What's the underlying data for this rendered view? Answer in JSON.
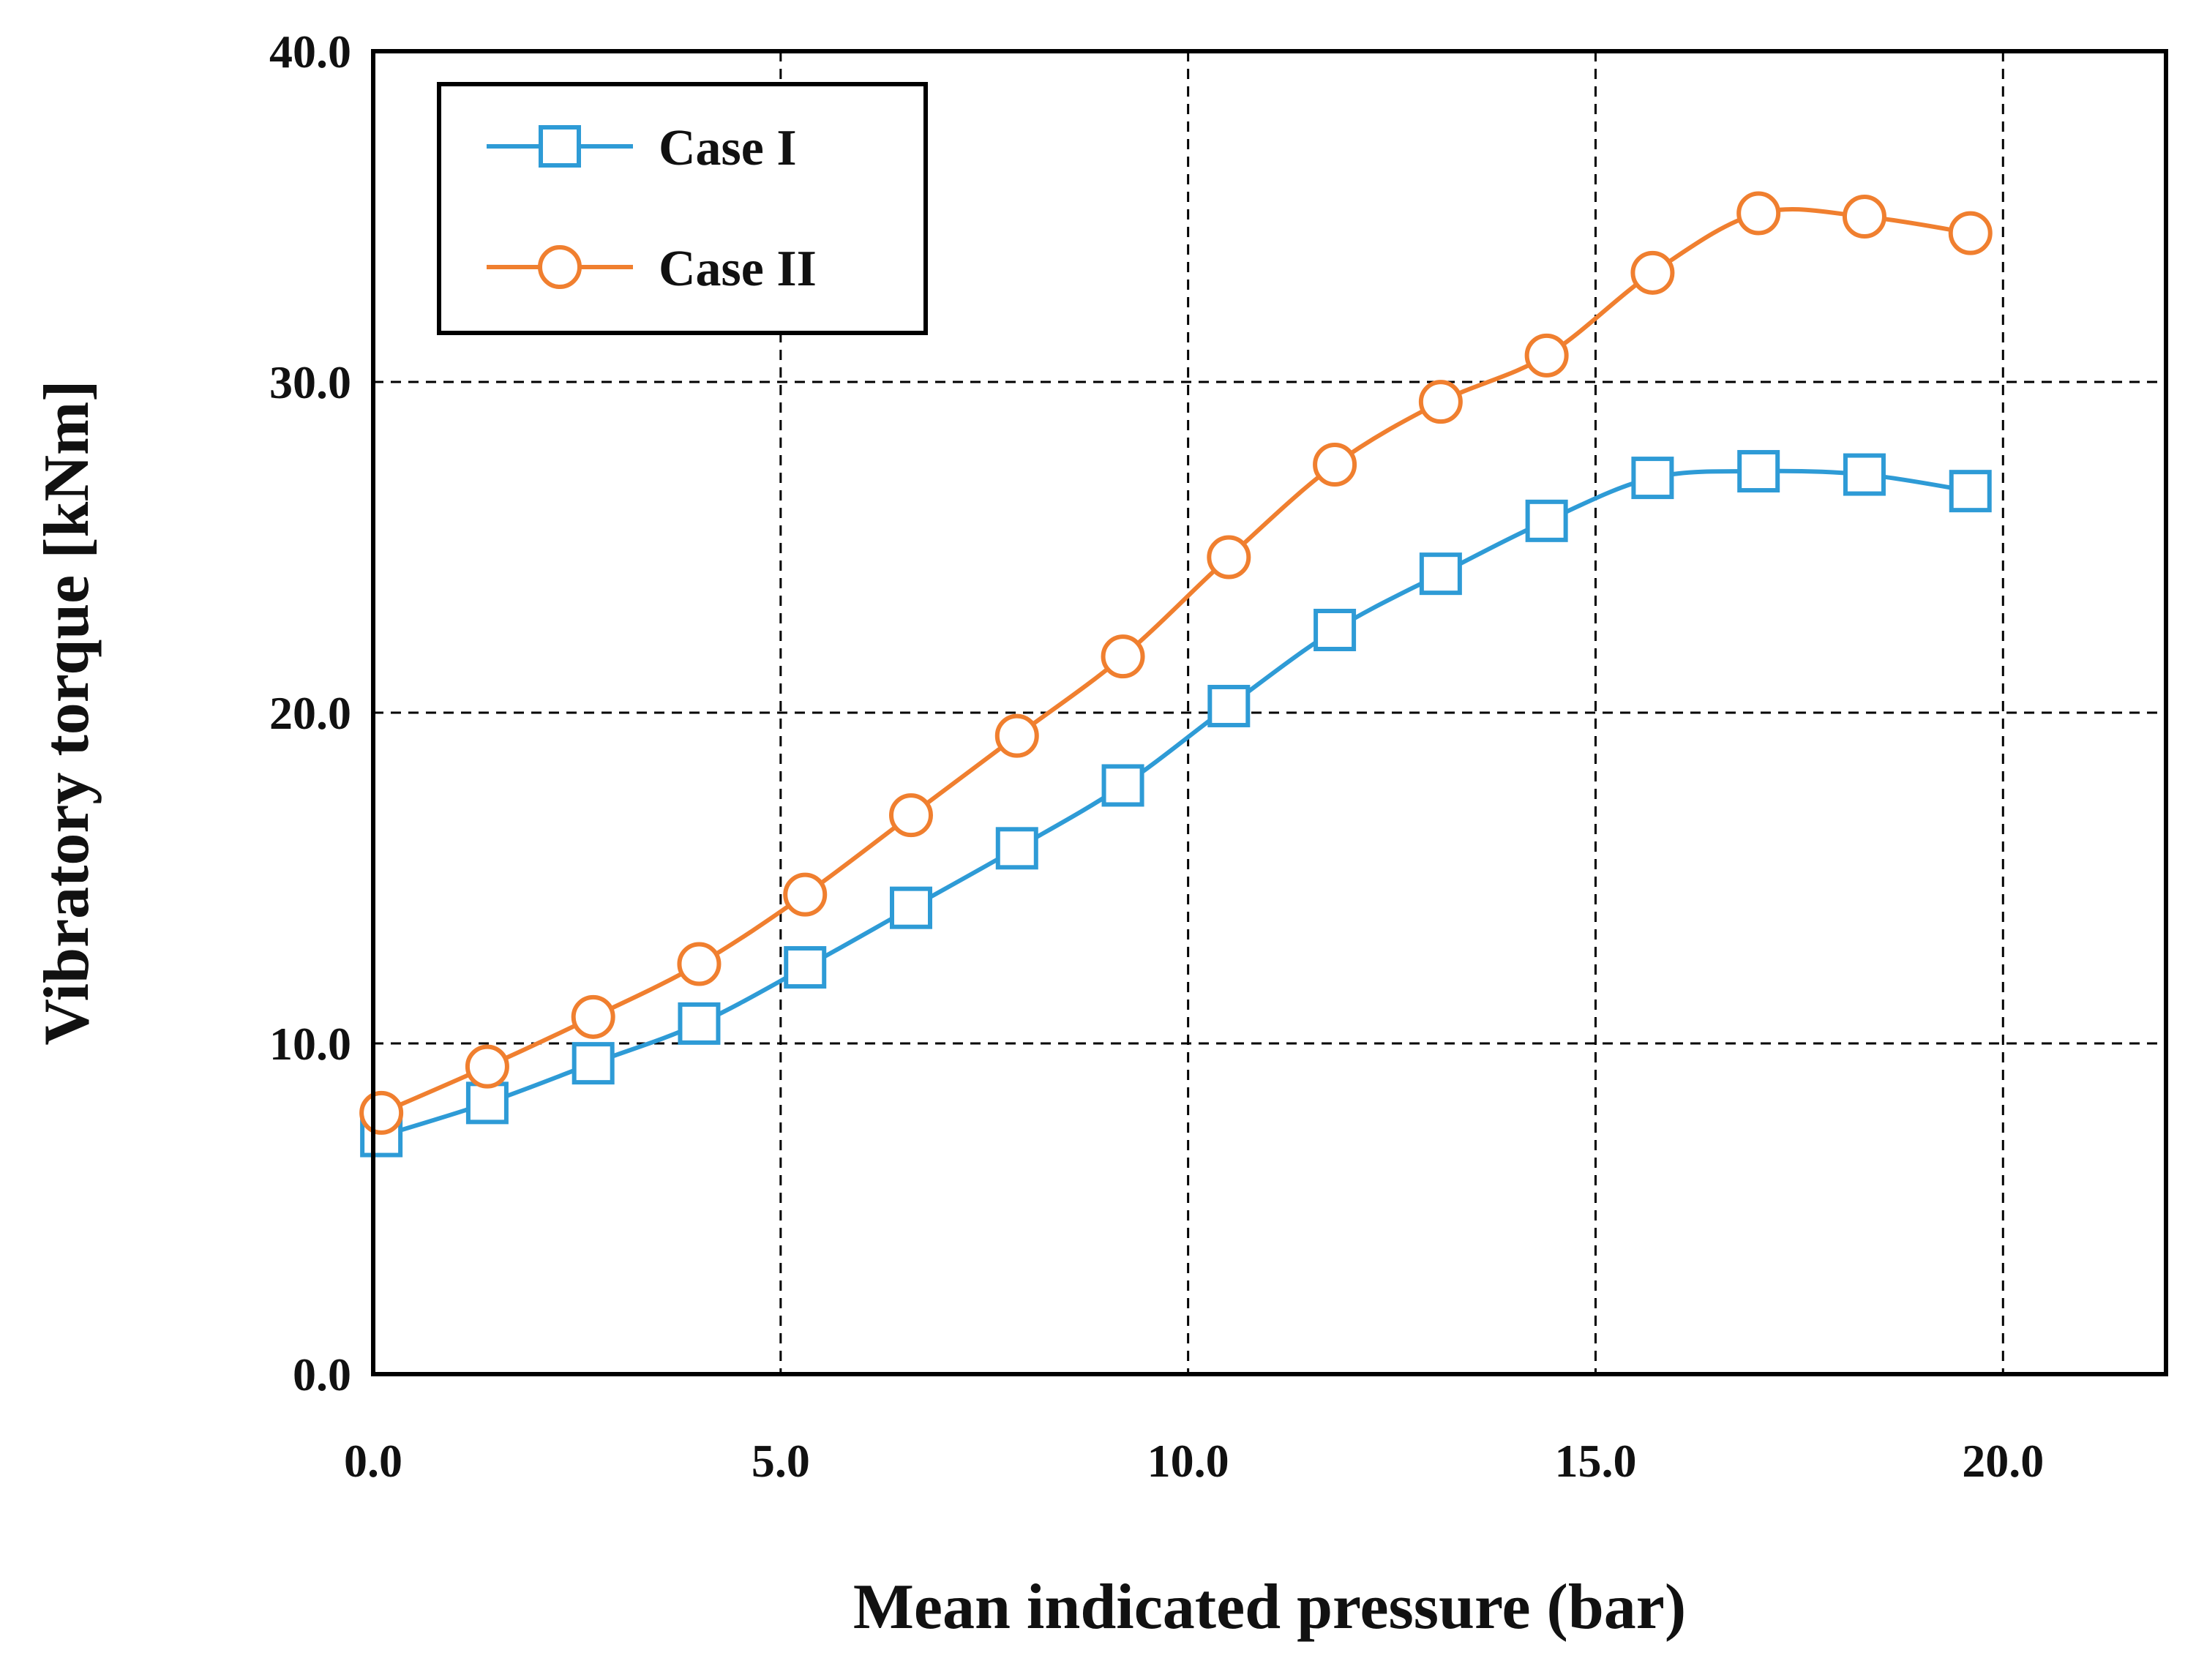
{
  "chart_data": {
    "type": "line",
    "title": "",
    "xlabel": "Mean indicated pressure (bar)",
    "ylabel": "Vibratory torque [kNm]",
    "xlim": [
      0,
      22
    ],
    "ylim": [
      0,
      40
    ],
    "xticks": [
      0,
      5,
      10,
      15,
      20
    ],
    "yticks": [
      0,
      10,
      20,
      30,
      40
    ],
    "x_tick_labels": [
      "0.0",
      "5.0",
      "10.0",
      "15.0",
      "20.0"
    ],
    "y_tick_labels": [
      "0.0",
      "10.0",
      "20.0",
      "30.0",
      "40.0"
    ],
    "grid": true,
    "legend_position": "top-left",
    "series": [
      {
        "name": "Case I",
        "marker": "square",
        "color": "#2E9BD6",
        "x": [
          0.1,
          1.4,
          2.7,
          4.0,
          5.3,
          6.6,
          7.9,
          9.2,
          10.5,
          11.8,
          13.1,
          14.4,
          15.7,
          17.0,
          18.3,
          19.6
        ],
        "values": [
          7.2,
          8.2,
          9.4,
          10.6,
          12.3,
          14.1,
          15.9,
          17.8,
          20.2,
          22.5,
          24.2,
          25.8,
          27.1,
          27.3,
          27.2,
          26.7
        ]
      },
      {
        "name": "Case II",
        "marker": "circle",
        "color": "#F07F2F",
        "x": [
          0.1,
          1.4,
          2.7,
          4.0,
          5.3,
          6.6,
          7.9,
          9.2,
          10.5,
          11.8,
          13.1,
          14.4,
          15.7,
          17.0,
          18.3,
          19.6
        ],
        "values": [
          7.9,
          9.3,
          10.8,
          12.4,
          14.5,
          16.9,
          19.3,
          21.7,
          24.7,
          27.5,
          29.4,
          30.8,
          33.3,
          35.1,
          35.0,
          34.5
        ]
      }
    ]
  }
}
